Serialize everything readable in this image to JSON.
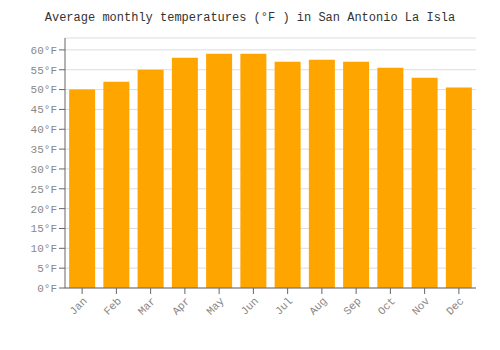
{
  "chart_data": {
    "type": "bar",
    "title": "Average monthly temperatures (°F ) in San Antonio La Isla",
    "categories": [
      "Jan",
      "Feb",
      "Mar",
      "Apr",
      "May",
      "Jun",
      "Jul",
      "Aug",
      "Sep",
      "Oct",
      "Nov",
      "Dec"
    ],
    "values": [
      50,
      52,
      55,
      58,
      59,
      59,
      57,
      57.5,
      57,
      55.5,
      53,
      50.5
    ],
    "color": "#FFA500",
    "ylim": [
      0,
      63
    ],
    "yticks": [
      {
        "value": 0,
        "label": "0°F"
      },
      {
        "value": 5,
        "label": "5°F"
      },
      {
        "value": 10,
        "label": "10°F"
      },
      {
        "value": 15,
        "label": "15°F"
      },
      {
        "value": 20,
        "label": "20°F"
      },
      {
        "value": 25,
        "label": "25°F"
      },
      {
        "value": 30,
        "label": "30°F"
      },
      {
        "value": 35,
        "label": "35°F"
      },
      {
        "value": 40,
        "label": "40°F"
      },
      {
        "value": 45,
        "label": "45°F"
      },
      {
        "value": 50,
        "label": "50°F"
      },
      {
        "value": 55,
        "label": "55°F"
      },
      {
        "value": 60,
        "label": "60°F"
      }
    ],
    "grid": true
  }
}
